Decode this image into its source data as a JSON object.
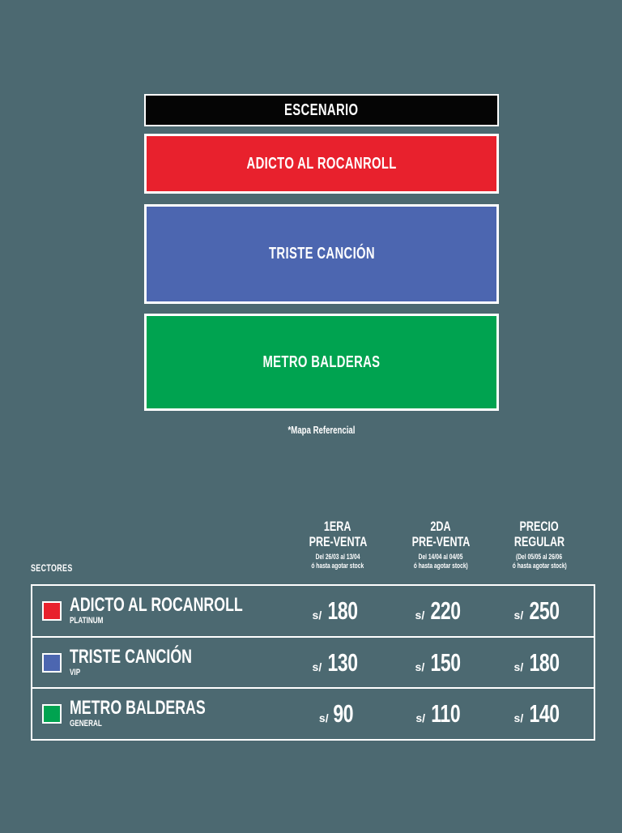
{
  "page": {
    "background_color": "#4c6971",
    "accent_white": "#ffffff"
  },
  "stage_map": {
    "escenario_label": "ESCENARIO",
    "zones": [
      {
        "name": "ADICTO AL ROCANROLL",
        "color": "#e8212d"
      },
      {
        "name": "TRISTE CANCIÓN",
        "color": "#4c66b0"
      },
      {
        "name": "METRO BALDERAS",
        "color": "#00a350"
      }
    ],
    "note": "*Mapa Referencial"
  },
  "pricing": {
    "sectors_label": "SECTORES",
    "columns": [
      {
        "title_line1": "1ERA",
        "title_line2": "PRE-VENTA",
        "dates_line1": "Del 26/03 al 13/04",
        "dates_line2": "ó hasta agotar stock"
      },
      {
        "title_line1": "2DA",
        "title_line2": "PRE-VENTA",
        "dates_line1": "Del 14/04 al 04/05",
        "dates_line2": "ó hasta agotar stock)"
      },
      {
        "title_line1": "PRECIO",
        "title_line2": "REGULAR",
        "dates_line1": "(Del 05/05 al 26/06",
        "dates_line2": "ó hasta agotar stock)"
      }
    ],
    "rows": [
      {
        "sector": "ADICTO AL ROCANROLL",
        "tier": "PLATINUM",
        "swatch_color": "#e8212d",
        "prices": [
          {
            "currency": "s/",
            "amount": "180"
          },
          {
            "currency": "s/",
            "amount": "220"
          },
          {
            "currency": "s/",
            "amount": "250"
          }
        ]
      },
      {
        "sector": "TRISTE CANCIÓN",
        "tier": "VIP",
        "swatch_color": "#4c66b0",
        "prices": [
          {
            "currency": "s/",
            "amount": "130"
          },
          {
            "currency": "s/",
            "amount": "150"
          },
          {
            "currency": "s/",
            "amount": "180"
          }
        ]
      },
      {
        "sector": "METRO BALDERAS",
        "tier": "GENERAL",
        "swatch_color": "#00a350",
        "prices": [
          {
            "currency": "s/",
            "amount": "90"
          },
          {
            "currency": "s/",
            "amount": "110"
          },
          {
            "currency": "s/",
            "amount": "140"
          }
        ]
      }
    ]
  }
}
